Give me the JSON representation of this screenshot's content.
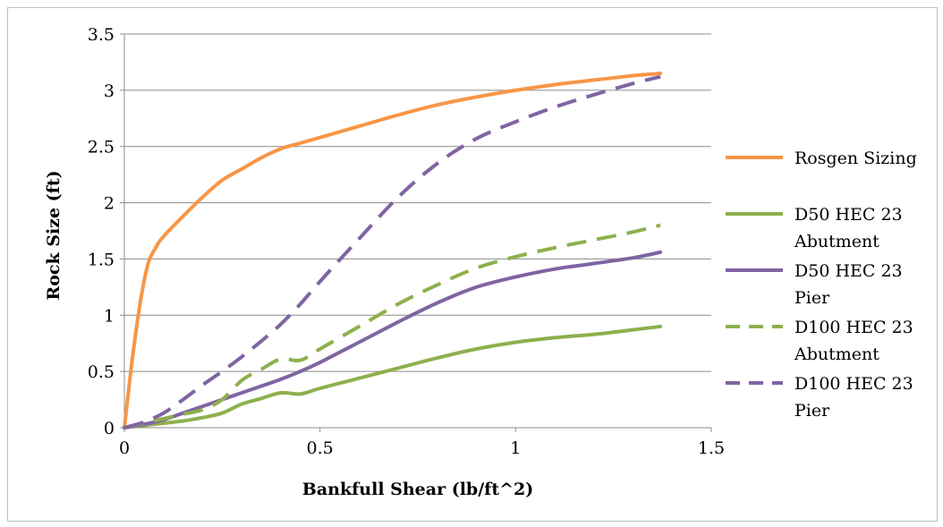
{
  "chart_data": {
    "type": "line",
    "title": "",
    "xlabel": "Bankfull Shear (lb/ft^2)",
    "ylabel": "Rock Size (ft)",
    "xlim": [
      0,
      1.5
    ],
    "ylim": [
      0,
      3.5
    ],
    "xticks": [
      0,
      0.5,
      1,
      1.5
    ],
    "xtick_labels": [
      "0",
      "0.5",
      "1",
      "1.5"
    ],
    "yticks": [
      0,
      0.5,
      1,
      1.5,
      2,
      2.5,
      3,
      3.5
    ],
    "ytick_labels": [
      "0",
      "0.5",
      "1",
      "1.5",
      "2",
      "2.5",
      "3",
      "3.5"
    ],
    "grid": "horizontal",
    "legend_position": "right",
    "series": [
      {
        "name": "Rosgen Sizing",
        "color": "#F79646",
        "dash": "solid",
        "legend_lines": [
          "Rosgen Sizing"
        ],
        "x": [
          0,
          0.02,
          0.04,
          0.06,
          0.08,
          0.1,
          0.15,
          0.2,
          0.25,
          0.3,
          0.35,
          0.4,
          0.45,
          0.5,
          0.6,
          0.7,
          0.8,
          0.9,
          1.0,
          1.1,
          1.2,
          1.3,
          1.37
        ],
        "y": [
          0,
          0.6,
          1.1,
          1.45,
          1.6,
          1.7,
          1.88,
          2.05,
          2.2,
          2.3,
          2.4,
          2.48,
          2.53,
          2.58,
          2.68,
          2.78,
          2.87,
          2.94,
          3.0,
          3.05,
          3.09,
          3.13,
          3.15
        ]
      },
      {
        "name": "D50 HEC 23 Abutment",
        "color": "#8DB04D",
        "dash": "solid",
        "legend_lines": [
          "D50 HEC 23",
          "Abutment"
        ],
        "x": [
          0,
          0.05,
          0.1,
          0.15,
          0.2,
          0.25,
          0.3,
          0.35,
          0.4,
          0.45,
          0.5,
          0.6,
          0.7,
          0.8,
          0.9,
          1.0,
          1.1,
          1.2,
          1.3,
          1.37
        ],
        "y": [
          0,
          0.02,
          0.04,
          0.06,
          0.09,
          0.13,
          0.21,
          0.26,
          0.31,
          0.3,
          0.35,
          0.44,
          0.53,
          0.62,
          0.7,
          0.76,
          0.8,
          0.83,
          0.87,
          0.9
        ]
      },
      {
        "name": "D50 HEC 23 Pier",
        "color": "#8064A2",
        "dash": "solid",
        "legend_lines": [
          "D50 HEC 23",
          "Pier"
        ],
        "x": [
          0,
          0.05,
          0.1,
          0.15,
          0.2,
          0.25,
          0.3,
          0.35,
          0.4,
          0.45,
          0.5,
          0.6,
          0.7,
          0.8,
          0.9,
          1.0,
          1.1,
          1.2,
          1.3,
          1.37
        ],
        "y": [
          0,
          0.03,
          0.07,
          0.13,
          0.19,
          0.25,
          0.31,
          0.37,
          0.43,
          0.5,
          0.58,
          0.76,
          0.94,
          1.11,
          1.25,
          1.34,
          1.41,
          1.46,
          1.51,
          1.56
        ]
      },
      {
        "name": "D100 HEC 23 Abutment",
        "color": "#8DB04D",
        "dash": "dashed",
        "legend_lines": [
          "D100 HEC 23",
          "Abutment"
        ],
        "x": [
          0,
          0.05,
          0.1,
          0.15,
          0.2,
          0.25,
          0.3,
          0.35,
          0.4,
          0.45,
          0.5,
          0.6,
          0.7,
          0.8,
          0.9,
          1.0,
          1.1,
          1.2,
          1.3,
          1.37
        ],
        "y": [
          0,
          0.04,
          0.08,
          0.12,
          0.16,
          0.25,
          0.42,
          0.52,
          0.61,
          0.6,
          0.7,
          0.9,
          1.1,
          1.27,
          1.42,
          1.52,
          1.6,
          1.67,
          1.74,
          1.8
        ]
      },
      {
        "name": "D100 HEC 23 Pier",
        "color": "#8064A2",
        "dash": "dashed",
        "legend_lines": [
          "D100 HEC 23",
          "Pier"
        ],
        "x": [
          0,
          0.05,
          0.1,
          0.15,
          0.2,
          0.25,
          0.3,
          0.35,
          0.4,
          0.45,
          0.5,
          0.6,
          0.7,
          0.8,
          0.9,
          1.0,
          1.1,
          1.2,
          1.3,
          1.37
        ],
        "y": [
          0,
          0.05,
          0.13,
          0.25,
          0.38,
          0.5,
          0.63,
          0.77,
          0.92,
          1.1,
          1.3,
          1.68,
          2.05,
          2.35,
          2.57,
          2.72,
          2.85,
          2.96,
          3.06,
          3.12
        ]
      }
    ]
  }
}
